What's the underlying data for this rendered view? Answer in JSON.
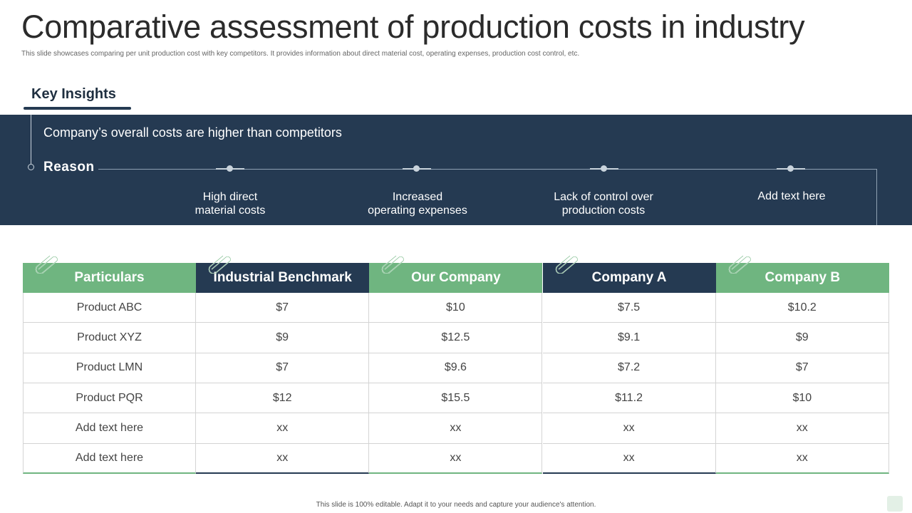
{
  "title": "Comparative assessment of production costs in industry",
  "subtitle": "This slide showcases comparing per unit production cost with key competitors. It provides information about direct material cost, operating expenses, production cost control, etc.",
  "key_insights": {
    "heading": "Key Insights",
    "headline": "Company’s overall costs are higher than competitors",
    "reason_label": "Reason",
    "reasons": [
      "High direct\nmaterial costs",
      "Increased\noperating expenses",
      "Lack of control over\nproduction costs",
      "Add text here"
    ]
  },
  "table": {
    "columns": [
      {
        "label": "Particulars",
        "color": "#6fb580",
        "cells": [
          "Product ABC",
          "Product XYZ",
          "Product LMN",
          "Product PQR",
          "Add text here",
          "Add text here"
        ]
      },
      {
        "label": "Industrial Benchmark",
        "color": "#253a52",
        "cells": [
          "$7",
          "$9",
          "$7",
          "$12",
          "xx",
          "xx"
        ]
      },
      {
        "label": "Our Company",
        "color": "#6fb580",
        "cells": [
          "$10",
          "$12.5",
          "$9.6",
          "$15.5",
          "xx",
          "xx"
        ]
      },
      {
        "label": "Company A",
        "color": "#253a52",
        "cells": [
          "$7.5",
          "$9.1",
          "$7.2",
          "$11.2",
          "xx",
          "xx"
        ]
      },
      {
        "label": "Company B",
        "color": "#6fb580",
        "cells": [
          "$10.2",
          "$9",
          "$7",
          "$10",
          "xx",
          "xx"
        ]
      }
    ]
  },
  "footer": "This slide is 100% editable. Adapt it to your needs and capture your audience's attention.",
  "colors": {
    "navy": "#253a52",
    "green": "#6fb580"
  }
}
